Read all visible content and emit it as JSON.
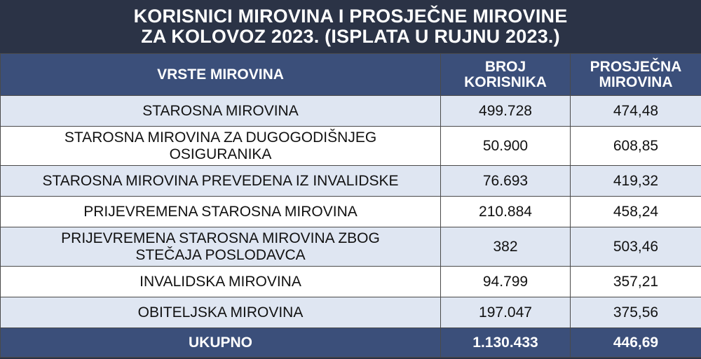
{
  "title": {
    "line1": "KORISNICI MIROVINA I PROSJEČNE MIROVINE",
    "line2": "ZA KOLOVOZ 2023. (ISPLATA U RUJNU 2023.)"
  },
  "table": {
    "headers": {
      "col1": "VRSTE MIROVINA",
      "col2_line1": "BROJ",
      "col2_line2": "KORISNIKA",
      "col3_line1": "PROSJEČNA",
      "col3_line2": "MIROVINA"
    },
    "rows": [
      {
        "type": "STAROSNA MIROVINA",
        "count": "499.728",
        "average": "474,48"
      },
      {
        "type": "STAROSNA MIROVINA ZA DUGOGODIŠNJEG OSIGURANIKA",
        "count": "50.900",
        "average": "608,85"
      },
      {
        "type": "STAROSNA MIROVINA PREVEDENA IZ INVALIDSKE",
        "count": "76.693",
        "average": "419,32"
      },
      {
        "type": "PRIJEVREMENA STAROSNA MIROVINA",
        "count": "210.884",
        "average": "458,24"
      },
      {
        "type": "PRIJEVREMENA STAROSNA MIROVINA ZBOG STEČAJA POSLODAVCA",
        "count": "382",
        "average": "503,46"
      },
      {
        "type": "INVALIDSKA MIROVINA",
        "count": "94.799",
        "average": "357,21"
      },
      {
        "type": "OBITELJSKA MIROVINA",
        "count": "197.047",
        "average": "375,56"
      }
    ],
    "total": {
      "label": "UKUPNO",
      "count": "1.130.433",
      "average": "446,69"
    }
  },
  "colors": {
    "title_bg": "#2b3346",
    "header_bg": "#3b4f7a",
    "row_alt_bg": "#dfe6f2",
    "row_bg": "#ffffff"
  }
}
